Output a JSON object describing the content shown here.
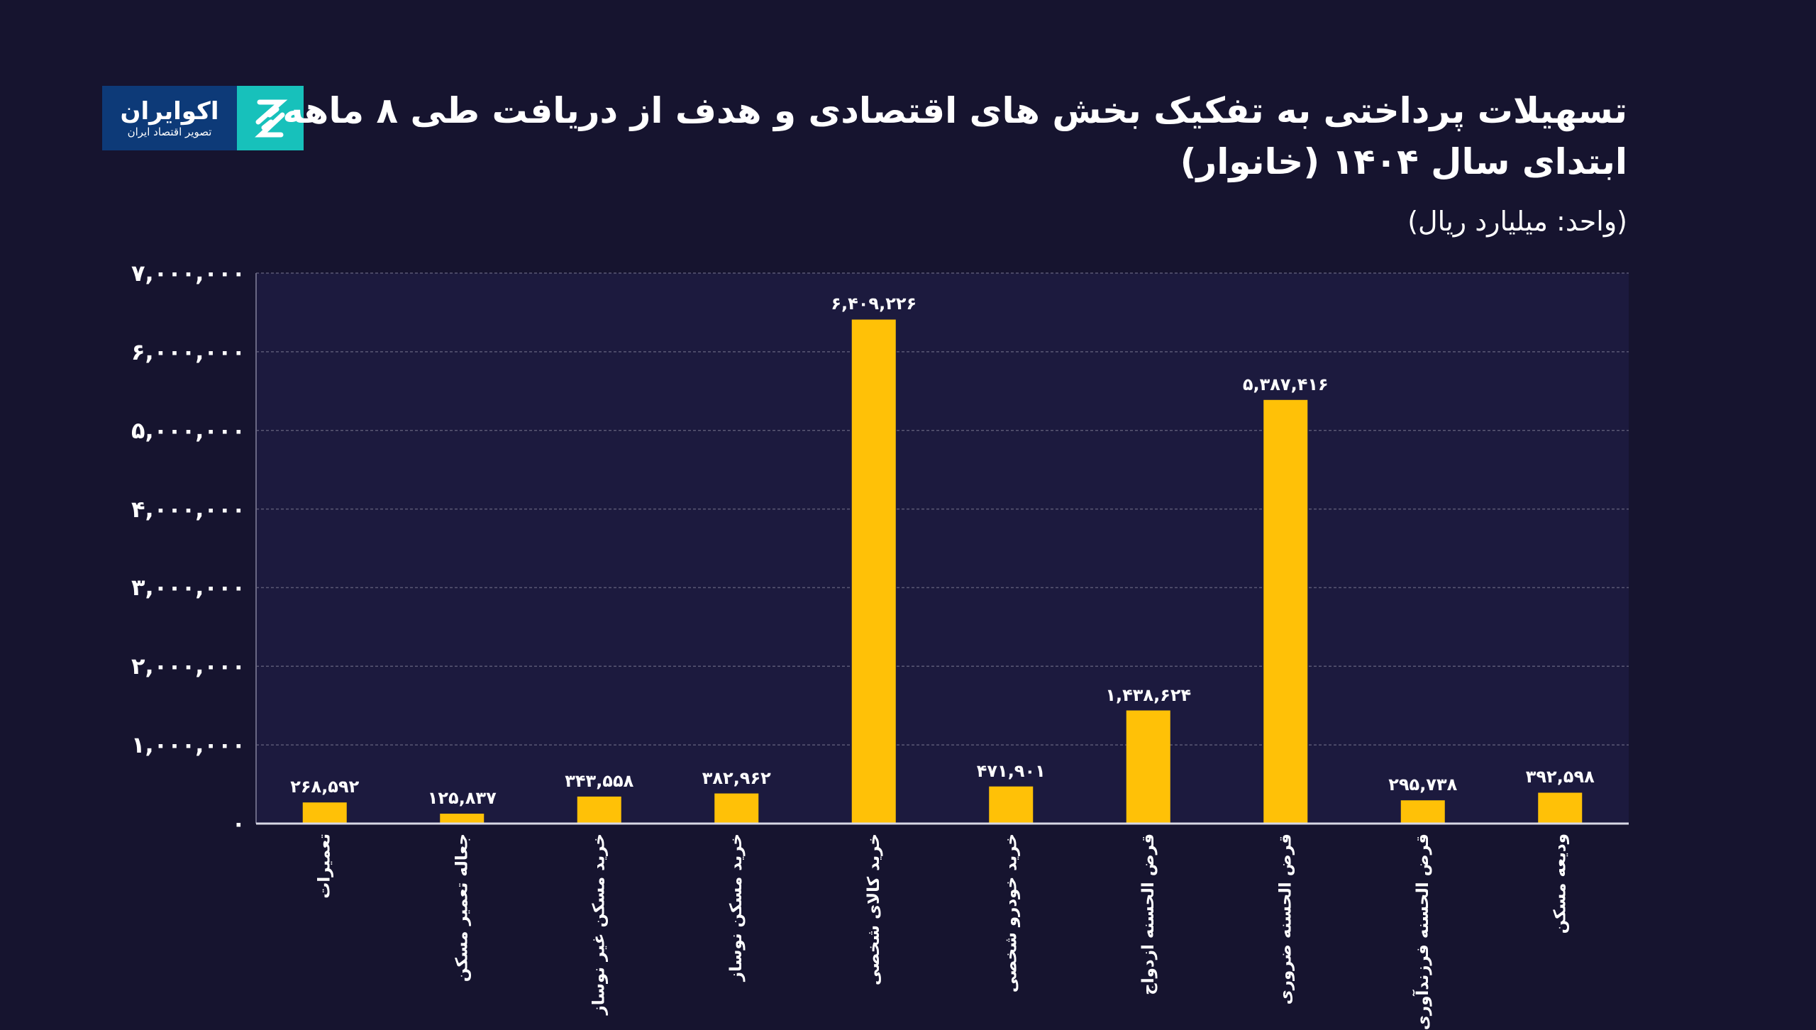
{
  "title": "تسهیلات پرداختی به تفکیک بخش های اقتصادی و هدف از دریافت طی ۸ ماهه ابتدای سال ۱۴۰۴ (خانوار)",
  "unit": "(واحد: میلیارد ریال)",
  "logo": {
    "name": "اکوایران",
    "tagline": "تصویر اقتصاد ایران"
  },
  "colors": {
    "background": "#16142f",
    "plot_background": "#1c1a3e",
    "bar": "#ffc107"
  },
  "chart_data": {
    "type": "bar",
    "title": "تسهیلات پرداختی به تفکیک بخش های اقتصادی و هدف از دریافت طی ۸ ماهه ابتدای سال ۱۴۰۴ (خانوار)",
    "ylabel": "(واحد: میلیارد ریال)",
    "ylim": [
      0,
      7000000
    ],
    "grid": true,
    "yticks": [
      0,
      1000000,
      2000000,
      3000000,
      4000000,
      5000000,
      6000000,
      7000000
    ],
    "ytick_labels": [
      "۰",
      "۱,۰۰۰,۰۰۰",
      "۲,۰۰۰,۰۰۰",
      "۳,۰۰۰,۰۰۰",
      "۴,۰۰۰,۰۰۰",
      "۵,۰۰۰,۰۰۰",
      "۶,۰۰۰,۰۰۰",
      "۷,۰۰۰,۰۰۰"
    ],
    "categories": [
      "تعمیرات",
      "جعاله تعمیر مسکن",
      "خرید مسکن غیر نوساز",
      "خرید مسکن نوساز",
      "خرید کالای شخصی",
      "خرید خودرو شخصی",
      "قرض الحسنه ازدواج",
      "قرض الحسنه ضروری",
      "قرض الحسنه فرزندآوری",
      "ودیعه مسکن"
    ],
    "values": [
      268592,
      125837,
      343558,
      382962,
      6409226,
      471901,
      1438624,
      5387416,
      295738,
      392598
    ],
    "data_labels": [
      "۲۶۸,۵۹۲",
      "۱۲۵,۸۳۷",
      "۳۴۳,۵۵۸",
      "۳۸۲,۹۶۲",
      "۶,۴۰۹,۲۲۶",
      "۴۷۱,۹۰۱",
      "۱,۴۳۸,۶۲۴",
      "۵,۳۸۷,۴۱۶",
      "۲۹۵,۷۳۸",
      "۳۹۲,۵۹۸"
    ]
  }
}
